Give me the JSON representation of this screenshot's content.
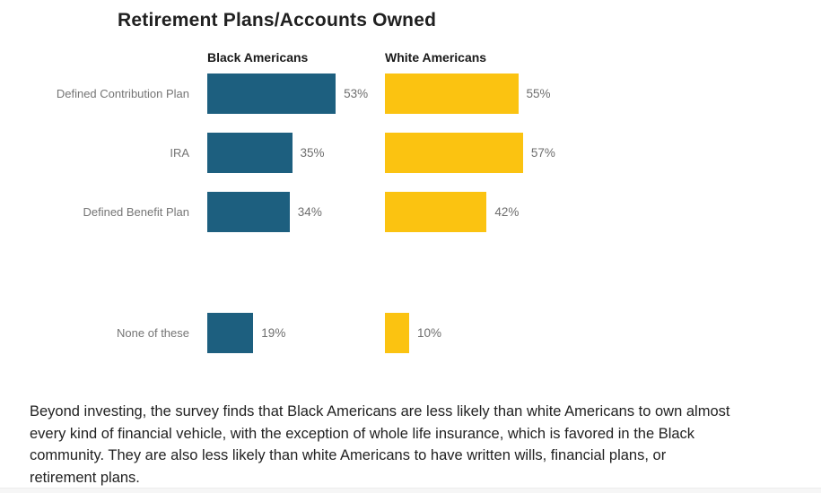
{
  "chart_data": {
    "type": "bar",
    "orientation": "horizontal",
    "title": "Retirement Plans/Accounts Owned",
    "categories": [
      "Defined Contribution Plan",
      "IRA",
      "Defined Benefit Plan",
      "None of these"
    ],
    "series": [
      {
        "name": "Black Americans",
        "color": "#1D5F7F",
        "values": [
          53,
          35,
          34,
          19
        ]
      },
      {
        "name": "White Americans",
        "color": "#FBC311",
        "values": [
          55,
          57,
          42,
          10
        ]
      }
    ],
    "value_suffix": "%",
    "xlim": [
      0,
      60
    ],
    "grid": false,
    "legend_position": "column-headers-above-bars"
  },
  "colors": {
    "black_americans_bar": "#1D5F7F",
    "white_americans_bar": "#FBC311",
    "title_text": "#202020",
    "category_label_text": "#757575",
    "value_label_text": "#6e6e6e",
    "paragraph_text": "#222222"
  },
  "paragraph": {
    "lines": [
      "Beyond investing, the survey finds that Black Americans are less likely than white Americans to own almost",
      "every kind of financial vehicle, with the exception of whole life insurance, which is favored in the Black",
      "community. They are also less likely than white Americans to have written wills, financial plans, or",
      "retirement plans."
    ],
    "text": "Beyond investing, the survey finds that Black Americans are less likely than white Americans to own almost every kind of financial vehicle, with the exception of whole life insurance, which is favored in the Black community. They are also less likely than white Americans to have written wills, financial plans, or retirement plans."
  }
}
